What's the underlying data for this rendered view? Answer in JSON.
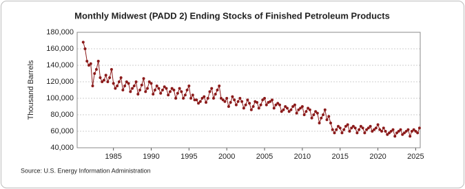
{
  "chart_data": {
    "type": "line",
    "title": "Monthly Midwest (PADD 2) Ending Stocks of Finished Petroleum Products",
    "y_label": "Thousand Barrels",
    "source": "Source: U.S. Energy Information Administration",
    "x": [
      1981,
      1981.25,
      1981.5,
      1981.75,
      1982,
      1982.25,
      1982.5,
      1982.75,
      1983,
      1983.25,
      1983.5,
      1983.75,
      1984,
      1984.25,
      1984.5,
      1984.75,
      1985,
      1985.25,
      1985.5,
      1985.75,
      1986,
      1986.25,
      1986.5,
      1986.75,
      1987,
      1987.25,
      1987.5,
      1987.75,
      1988,
      1988.25,
      1988.5,
      1988.75,
      1989,
      1989.25,
      1989.5,
      1989.75,
      1990,
      1990.25,
      1990.5,
      1990.75,
      1991,
      1991.25,
      1991.5,
      1991.75,
      1992,
      1992.25,
      1992.5,
      1992.75,
      1993,
      1993.25,
      1993.5,
      1993.75,
      1994,
      1994.25,
      1994.5,
      1994.75,
      1995,
      1995.25,
      1995.5,
      1995.75,
      1996,
      1996.25,
      1996.5,
      1996.75,
      1997,
      1997.25,
      1997.5,
      1997.75,
      1998,
      1998.25,
      1998.5,
      1998.75,
      1999,
      1999.25,
      1999.5,
      1999.75,
      2000,
      2000.25,
      2000.5,
      2000.75,
      2001,
      2001.25,
      2001.5,
      2001.75,
      2002,
      2002.25,
      2002.5,
      2002.75,
      2003,
      2003.25,
      2003.5,
      2003.75,
      2004,
      2004.25,
      2004.5,
      2004.75,
      2005,
      2005.25,
      2005.5,
      2005.75,
      2006,
      2006.25,
      2006.5,
      2006.75,
      2007,
      2007.25,
      2007.5,
      2007.75,
      2008,
      2008.25,
      2008.5,
      2008.75,
      2009,
      2009.25,
      2009.5,
      2009.75,
      2010,
      2010.25,
      2010.5,
      2010.75,
      2011,
      2011.25,
      2011.5,
      2011.75,
      2012,
      2012.25,
      2012.5,
      2012.75,
      2013,
      2013.25,
      2013.5,
      2013.75,
      2014,
      2014.25,
      2014.5,
      2014.75,
      2015,
      2015.25,
      2015.5,
      2015.75,
      2016,
      2016.25,
      2016.5,
      2016.75,
      2017,
      2017.25,
      2017.5,
      2017.75,
      2018,
      2018.25,
      2018.5,
      2018.75,
      2019,
      2019.25,
      2019.5,
      2019.75,
      2020,
      2020.25,
      2020.5,
      2020.75,
      2021,
      2021.25,
      2021.5,
      2021.75,
      2022,
      2022.25,
      2022.5,
      2022.75,
      2023,
      2023.25,
      2023.5,
      2023.75,
      2024,
      2024.25,
      2024.5,
      2024.75,
      2025,
      2025.25,
      2025.5
    ],
    "series": [
      {
        "name": "Midwest Ending Stocks",
        "color": "#8b1a1a",
        "values": [
          168000,
          160000,
          145000,
          140000,
          142000,
          115000,
          130000,
          135000,
          145000,
          125000,
          120000,
          122000,
          128000,
          120000,
          125000,
          135000,
          118000,
          112000,
          115000,
          120000,
          125000,
          110000,
          115000,
          120000,
          118000,
          108000,
          112000,
          115000,
          120000,
          105000,
          110000,
          116000,
          124000,
          108000,
          112000,
          120000,
          118000,
          105000,
          110000,
          115000,
          112000,
          106000,
          110000,
          114000,
          112000,
          104000,
          108000,
          112000,
          110000,
          100000,
          106000,
          112000,
          108000,
          100000,
          104000,
          110000,
          115000,
          100000,
          104000,
          98000,
          98000,
          94000,
          96000,
          100000,
          102000,
          95000,
          100000,
          108000,
          112000,
          100000,
          105000,
          110000,
          115000,
          100000,
          98000,
          96000,
          100000,
          90000,
          95000,
          102000,
          98000,
          92000,
          96000,
          100000,
          96000,
          88000,
          92000,
          98000,
          94000,
          86000,
          90000,
          96000,
          95000,
          88000,
          92000,
          98000,
          100000,
          92000,
          95000,
          96000,
          98000,
          88000,
          92000,
          94000,
          92000,
          84000,
          86000,
          90000,
          88000,
          84000,
          86000,
          90000,
          92000,
          82000,
          86000,
          88000,
          90000,
          80000,
          84000,
          88000,
          86000,
          76000,
          80000,
          84000,
          82000,
          70000,
          76000,
          80000,
          86000,
          74000,
          78000,
          70000,
          62000,
          58000,
          62000,
          66000,
          64000,
          58000,
          62000,
          66000,
          68000,
          60000,
          64000,
          66000,
          64000,
          58000,
          62000,
          66000,
          64000,
          58000,
          62000,
          64000,
          66000,
          60000,
          62000,
          64000,
          68000,
          62000,
          60000,
          64000,
          60000,
          56000,
          58000,
          60000,
          62000,
          54000,
          58000,
          60000,
          62000,
          56000,
          58000,
          60000,
          62000,
          54000,
          60000,
          62000,
          60000,
          58000,
          64000
        ]
      }
    ],
    "xlim": [
      1980.2,
      2025.6
    ],
    "xticks": [
      1985,
      1990,
      1995,
      2000,
      2005,
      2010,
      2015,
      2020,
      2025
    ],
    "ylim": [
      40000,
      180000
    ],
    "yticks": [
      {
        "value": 40000,
        "label": "40,000"
      },
      {
        "value": 60000,
        "label": "60,000"
      },
      {
        "value": 80000,
        "label": "80,000"
      },
      {
        "value": 100000,
        "label": "100,000"
      },
      {
        "value": 120000,
        "label": "120,000"
      },
      {
        "value": 140000,
        "label": "140,000"
      },
      {
        "value": 160000,
        "label": "160,000"
      },
      {
        "value": 180000,
        "label": "180,000"
      }
    ],
    "grid": true
  }
}
